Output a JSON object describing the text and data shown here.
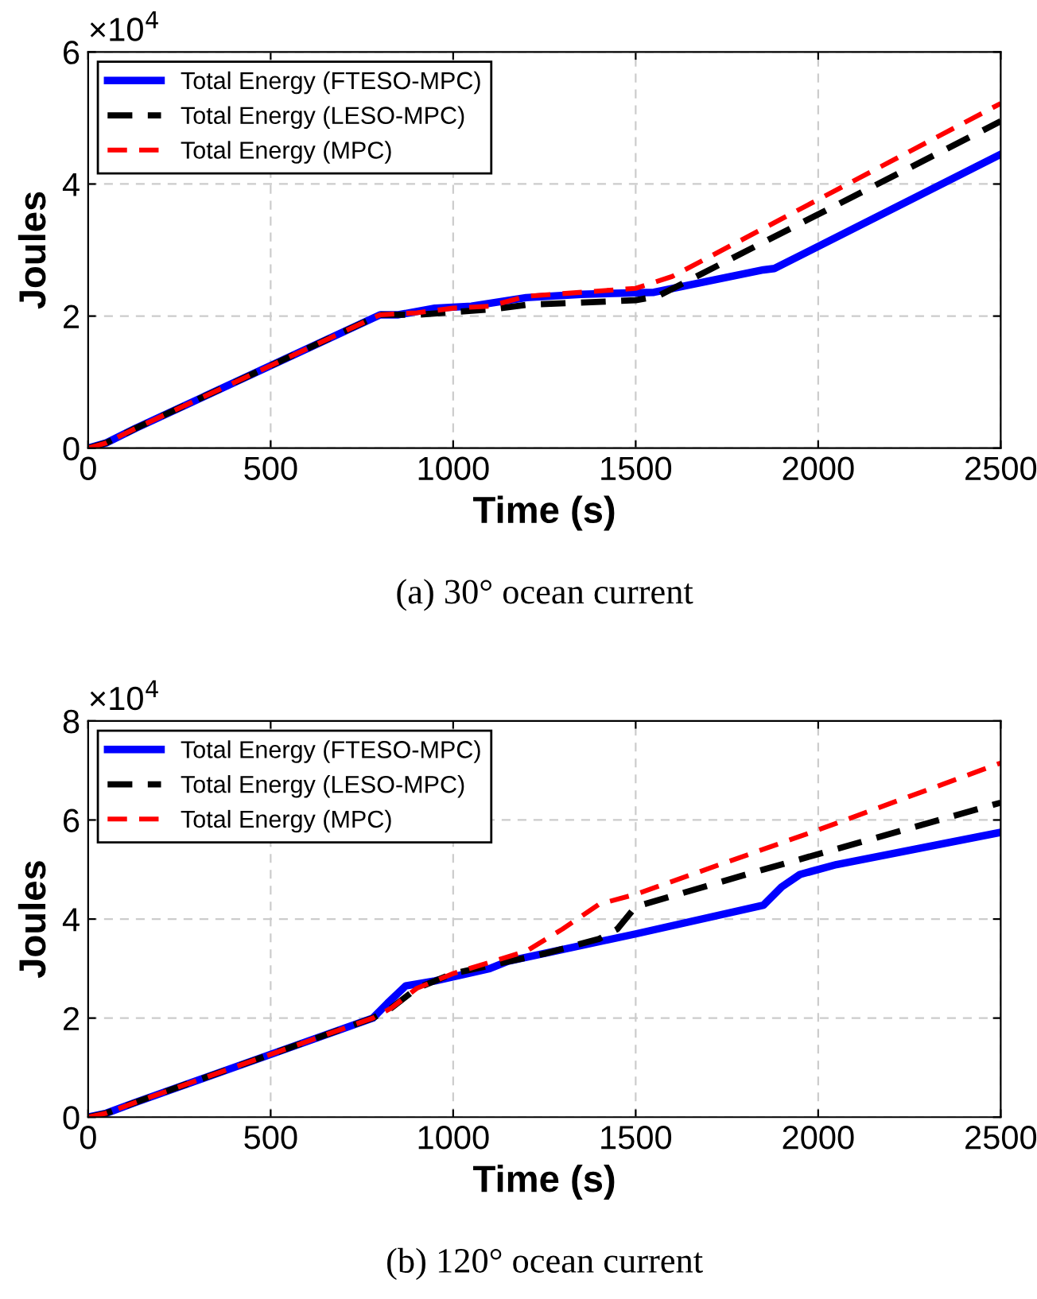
{
  "chart_data": [
    {
      "type": "line",
      "xlabel": "Time (s)",
      "ylabel": "Joules",
      "annotations": [
        "×10$^{4}$",
        "(a) 30° ocean current"
      ],
      "xlim": [
        0,
        2500
      ],
      "ylim": [
        0,
        6
      ],
      "xticks": [
        0,
        500,
        1000,
        1500,
        2000,
        2500
      ],
      "yticks": [
        0,
        2,
        4,
        6
      ],
      "grid": true,
      "legend": "top left",
      "series": [
        {
          "name": "Total Energy (FTESO-MPC)",
          "color": "#0000ff",
          "line_style": "solid",
          "x": [
            0,
            50,
            130,
            800,
            850,
            950,
            1050,
            1200,
            1350,
            1550,
            1850,
            1880,
            2500
          ],
          "values": [
            0,
            0.08,
            0.3,
            2.02,
            2.02,
            2.12,
            2.15,
            2.28,
            2.33,
            2.36,
            2.7,
            2.72,
            4.45
          ]
        },
        {
          "name": "Total Energy (LESO-MPC)",
          "color": "#000000",
          "line_style": "dashed",
          "x": [
            0,
            50,
            130,
            800,
            900,
            1000,
            1100,
            1200,
            1500,
            1560,
            2500
          ],
          "values": [
            0,
            0.08,
            0.3,
            2.02,
            2.02,
            2.06,
            2.1,
            2.17,
            2.24,
            2.3,
            4.95
          ]
        },
        {
          "name": "Total Energy (MPC)",
          "color": "#ff0000",
          "line_style": "dashed",
          "x": [
            0,
            50,
            130,
            800,
            900,
            1000,
            1100,
            1200,
            1500,
            1600,
            2500
          ],
          "values": [
            0,
            0.08,
            0.3,
            2.02,
            2.05,
            2.12,
            2.15,
            2.3,
            2.42,
            2.6,
            5.22
          ]
        }
      ]
    },
    {
      "type": "line",
      "xlabel": "Time (s)",
      "ylabel": "Joules",
      "annotations": [
        "×10$^{4}$",
        "(b) 120° ocean current"
      ],
      "xlim": [
        0,
        2500
      ],
      "ylim": [
        0,
        8
      ],
      "xticks": [
        0,
        500,
        1000,
        1500,
        2000,
        2500
      ],
      "yticks": [
        0,
        2,
        4,
        6,
        8
      ],
      "grid": true,
      "legend": "top left",
      "series": [
        {
          "name": "Total Energy (FTESO-MPC)",
          "color": "#0000ff",
          "line_style": "solid",
          "x": [
            0,
            50,
            130,
            780,
            820,
            870,
            950,
            1100,
            1150,
            1500,
            1850,
            1900,
            1950,
            2050,
            2500
          ],
          "values": [
            0,
            0.08,
            0.3,
            2.0,
            2.3,
            2.65,
            2.75,
            3.0,
            3.15,
            3.7,
            4.28,
            4.65,
            4.9,
            5.1,
            5.75
          ]
        },
        {
          "name": "Total Energy (LESO-MPC)",
          "color": "#000000",
          "line_style": "dashed",
          "x": [
            0,
            50,
            130,
            780,
            830,
            900,
            1000,
            1250,
            1400,
            1450,
            1500,
            1850,
            2500
          ],
          "values": [
            0,
            0.08,
            0.3,
            2.0,
            2.2,
            2.6,
            2.9,
            3.3,
            3.6,
            3.8,
            4.25,
            5.0,
            6.35
          ]
        },
        {
          "name": "Total Energy (MPC)",
          "color": "#ff0000",
          "line_style": "dashed",
          "x": [
            0,
            50,
            130,
            780,
            830,
            900,
            1000,
            1200,
            1300,
            1400,
            1500,
            2000,
            2500
          ],
          "values": [
            0,
            0.08,
            0.3,
            2.0,
            2.2,
            2.6,
            2.9,
            3.35,
            3.8,
            4.3,
            4.5,
            5.8,
            7.15
          ]
        }
      ]
    }
  ]
}
